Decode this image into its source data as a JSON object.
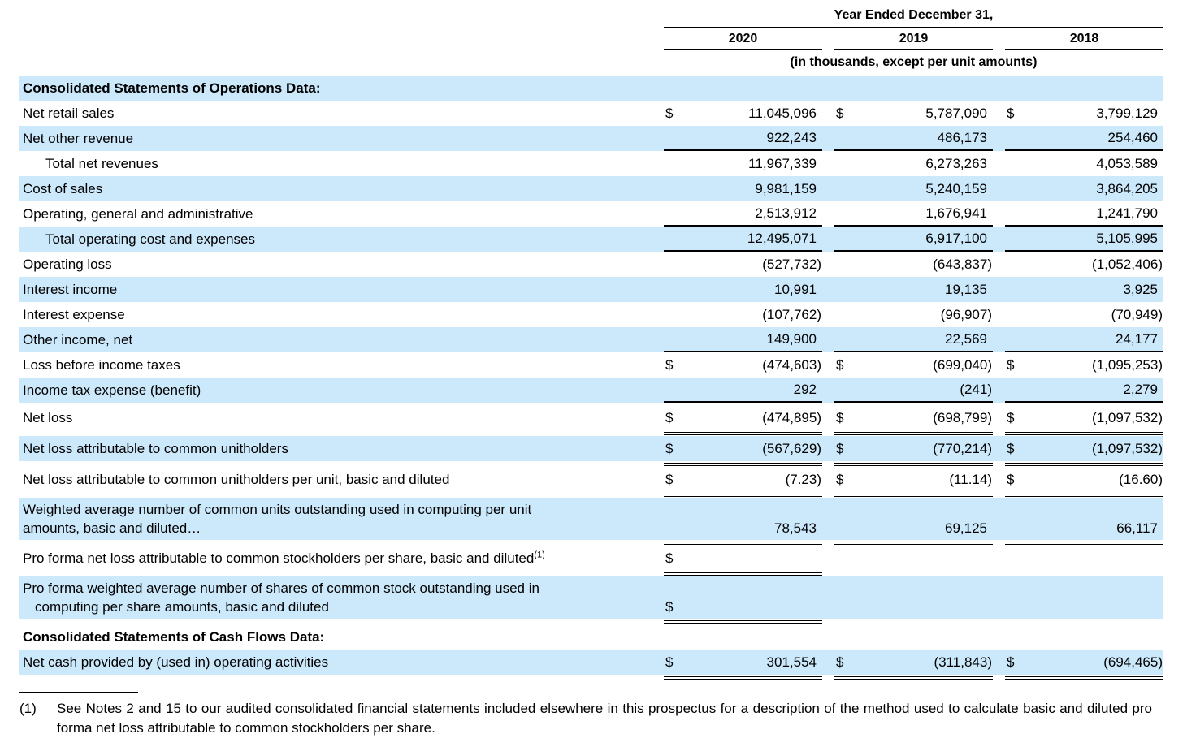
{
  "accent": {
    "stripe_color": "#cce9fc",
    "rule_color": "#000000"
  },
  "header": {
    "period_title": "Year Ended December 31,",
    "years": [
      "2020",
      "2019",
      "2018"
    ],
    "units_caption": "(in thousands, except per unit amounts)"
  },
  "table": {
    "rows": [
      {
        "label": "Consolidated Statements of Operations Data:",
        "bold": true,
        "cells": [
          null,
          null,
          null
        ],
        "underline": "none"
      },
      {
        "label": "Net retail sales",
        "cells": [
          {
            "cur": "$",
            "val": "11,045,096"
          },
          {
            "cur": "$",
            "val": "5,787,090"
          },
          {
            "cur": "$",
            "val": "3,799,129"
          }
        ],
        "underline": "none"
      },
      {
        "label": "Net other revenue",
        "cells": [
          {
            "val": "922,243"
          },
          {
            "val": "486,173"
          },
          {
            "val": "254,460"
          }
        ],
        "underline": "single"
      },
      {
        "label": "Total net revenues",
        "indent": true,
        "cells": [
          {
            "val": "11,967,339"
          },
          {
            "val": "6,273,263"
          },
          {
            "val": "4,053,589"
          }
        ],
        "underline": "none"
      },
      {
        "label": "Cost of sales",
        "cells": [
          {
            "val": "9,981,159"
          },
          {
            "val": "5,240,159"
          },
          {
            "val": "3,864,205"
          }
        ],
        "underline": "none"
      },
      {
        "label": "Operating, general and administrative",
        "cells": [
          {
            "val": "2,513,912"
          },
          {
            "val": "1,676,941"
          },
          {
            "val": "1,241,790"
          }
        ],
        "underline": "single"
      },
      {
        "label": "Total operating cost and expenses",
        "indent": true,
        "cells": [
          {
            "val": "12,495,071"
          },
          {
            "val": "6,917,100"
          },
          {
            "val": "5,105,995"
          }
        ],
        "underline": "single"
      },
      {
        "label": "Operating loss",
        "cells": [
          {
            "val": "(527,732)"
          },
          {
            "val": "(643,837)"
          },
          {
            "val": "(1,052,406)"
          }
        ],
        "underline": "none"
      },
      {
        "label": "Interest income",
        "cells": [
          {
            "val": "10,991"
          },
          {
            "val": "19,135"
          },
          {
            "val": "3,925"
          }
        ],
        "underline": "none"
      },
      {
        "label": "Interest expense",
        "cells": [
          {
            "val": "(107,762)"
          },
          {
            "val": "(96,907)"
          },
          {
            "val": "(70,949)"
          }
        ],
        "underline": "none"
      },
      {
        "label": "Other income, net",
        "cells": [
          {
            "val": "149,900"
          },
          {
            "val": "22,569"
          },
          {
            "val": "24,177"
          }
        ],
        "underline": "single"
      },
      {
        "label": "Loss before income taxes",
        "cells": [
          {
            "cur": "$",
            "val": "(474,603)"
          },
          {
            "cur": "$",
            "val": "(699,040)"
          },
          {
            "cur": "$",
            "val": "(1,095,253)"
          }
        ],
        "underline": "none"
      },
      {
        "label": "Income tax expense (benefit)",
        "cells": [
          {
            "val": "292"
          },
          {
            "val": "(241)"
          },
          {
            "val": "2,279"
          }
        ],
        "underline": "single"
      },
      {
        "label": "Net loss",
        "cells": [
          {
            "cur": "$",
            "val": "(474,895)"
          },
          {
            "cur": "$",
            "val": "(698,799)"
          },
          {
            "cur": "$",
            "val": "(1,097,532)"
          }
        ],
        "underline": "double"
      },
      {
        "label": "Net loss attributable to common unitholders",
        "cells": [
          {
            "cur": "$",
            "val": "(567,629)"
          },
          {
            "cur": "$",
            "val": "(770,214)"
          },
          {
            "cur": "$",
            "val": "(1,097,532)"
          }
        ],
        "underline": "double"
      },
      {
        "label": "Net loss attributable to common unitholders per unit, basic and diluted",
        "cells": [
          {
            "cur": "$",
            "val": "(7.23)"
          },
          {
            "cur": "$",
            "val": "(11.14)"
          },
          {
            "cur": "$",
            "val": "(16.60)"
          }
        ],
        "underline": "double"
      },
      {
        "label": "Weighted average number of common units outstanding used in computing per unit",
        "label2": "amounts, basic and diluted…",
        "cells": [
          {
            "val": "78,543"
          },
          {
            "val": "69,125"
          },
          {
            "val": "66,117"
          }
        ],
        "underline": "double"
      },
      {
        "label": "Pro forma net loss attributable to common stockholders per share, basic and diluted",
        "sup": "(1)",
        "cells": [
          {
            "cur": "$"
          },
          null,
          null
        ],
        "underline": "double"
      },
      {
        "label": "Pro forma weighted average number of shares of common stock outstanding used in",
        "label2": "computing per share amounts, basic and diluted",
        "label2_indent": true,
        "cells": [
          {
            "cur": "$"
          },
          null,
          null
        ],
        "underline": "double"
      },
      {
        "label": "Consolidated Statements of Cash Flows Data:",
        "bold": true,
        "cells": [
          null,
          null,
          null
        ],
        "underline": "none"
      },
      {
        "label": "Net cash provided by (used in) operating activities",
        "cells": [
          {
            "cur": "$",
            "val": "301,554"
          },
          {
            "cur": "$",
            "val": "(311,843)"
          },
          {
            "cur": "$",
            "val": "(694,465)"
          }
        ],
        "underline": "double"
      }
    ]
  },
  "footnote": {
    "marker": "(1)",
    "text": "See Notes 2 and 15 to our audited consolidated financial statements included elsewhere in this prospectus for a description of the method used to calculate basic and diluted pro forma net loss attributable to common stockholders per share."
  }
}
